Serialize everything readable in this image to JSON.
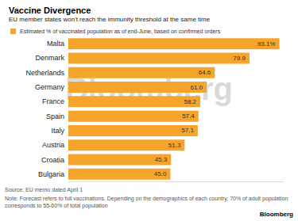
{
  "chart_data": {
    "type": "bar",
    "orientation": "horizontal",
    "title": "Vaccine Divergence",
    "subtitle": "EU member states won't reach the immunity threshold at the same time",
    "series": [
      {
        "name": "Estimated % of vaccinated population as of end-June, based on confirmed orders",
        "color": "#f5a42c",
        "values": [
          93.1,
          79.9,
          64.6,
          61.0,
          58.2,
          57.4,
          57.1,
          51.3,
          45.3,
          45.0
        ],
        "value_labels": [
          "93.1%",
          "79.9",
          "64.6",
          "61.0",
          "58.2",
          "57.4",
          "57.1",
          "51.3",
          "45.3",
          "45.0"
        ]
      }
    ],
    "categories": [
      "Malta",
      "Denmark",
      "Netherlands",
      "Germany",
      "France",
      "Spain",
      "Italy",
      "Austria",
      "Croatia",
      "Bulgaria"
    ],
    "xlim": [
      0,
      95
    ],
    "data_labels": true,
    "tick_labels": "y",
    "grid": false,
    "legend": "top-left",
    "source": "Source: EU memo dated April 1",
    "note": "Note: Forecast refers to full vaccinations. Depending on the demographics of each country, 70% of adult population corresponds to 55-60% of total population",
    "brand": "Bloomberg",
    "watermark": "Bloomberg"
  }
}
